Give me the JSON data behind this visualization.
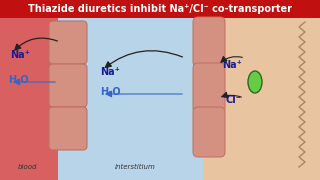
{
  "title": "Thiazide diuretics inhibit Na⁺/Cl⁻ co-transporter",
  "title_bg": "#c01010",
  "title_color": "#ffffff",
  "bg_color": "#e8e8e0",
  "blood_color": "#d96060",
  "interstitium_color": "#b8d4e8",
  "cell_color": "#e8c4a0",
  "wall_color": "#d49080",
  "wall_edge": "#c07060",
  "blood_label": "blood",
  "interstitium_label": "interstitium",
  "na_color": "#1a1a99",
  "h2o_color": "#3366cc",
  "arrow_color": "#222222",
  "green_oval_color": "#66cc44",
  "green_oval_edge": "#336622",
  "figsize": [
    3.2,
    1.8
  ],
  "dpi": 100
}
